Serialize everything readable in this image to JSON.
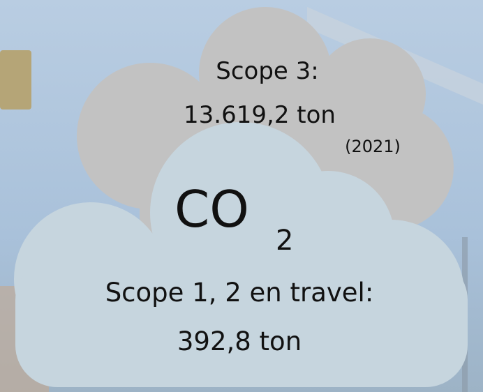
{
  "scope3": {
    "label": "Scope 3:",
    "amount": "13.619,2 ton",
    "year": "(2021)"
  },
  "co2": {
    "main": "CO",
    "sub": "2"
  },
  "scope12": {
    "label": "Scope 1, 2 en travel:",
    "amount": "392,8 ton"
  }
}
